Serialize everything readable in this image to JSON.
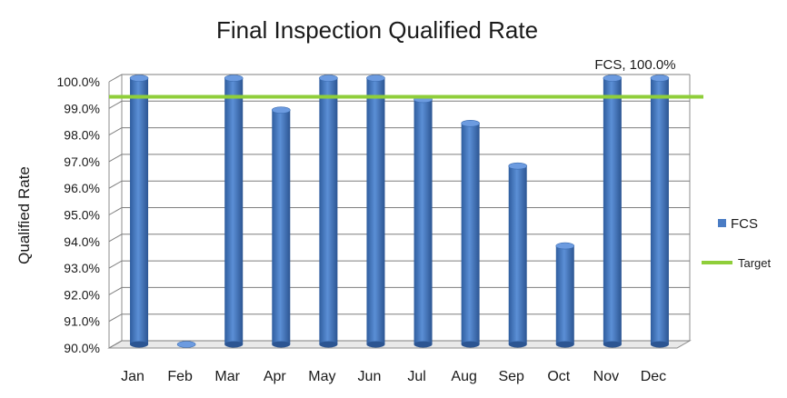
{
  "chart_data": {
    "type": "bar",
    "title": "Final Inspection Qualified Rate",
    "ylabel": "Qualified Rate",
    "xlabel": "",
    "ylim": [
      90.0,
      100.0
    ],
    "ytick_step": 1.0,
    "ytick_labels": [
      "90.0%",
      "91.0%",
      "92.0%",
      "93.0%",
      "94.0%",
      "95.0%",
      "96.0%",
      "97.0%",
      "98.0%",
      "99.0%",
      "100.0%"
    ],
    "categories": [
      "Jan",
      "Feb",
      "Mar",
      "Apr",
      "May",
      "Jun",
      "Jul",
      "Aug",
      "Sep",
      "Oct",
      "Nov",
      "Dec"
    ],
    "series": [
      {
        "name": "FCS",
        "type": "bar",
        "color": "#4a7cc4",
        "values": [
          100.0,
          90.0,
          100.0,
          98.8,
          100.0,
          100.0,
          99.2,
          98.3,
          96.7,
          93.7,
          100.0,
          100.0
        ]
      },
      {
        "name": "Target",
        "type": "line",
        "color": "#8fce3a",
        "values": [
          99.3,
          99.3,
          99.3,
          99.3,
          99.3,
          99.3,
          99.3,
          99.3,
          99.3,
          99.3,
          99.3,
          99.3
        ]
      }
    ],
    "annotation": {
      "text": "FCS, 100.0%",
      "category": "Dec"
    },
    "legend": {
      "position": "right"
    },
    "grid": true
  }
}
